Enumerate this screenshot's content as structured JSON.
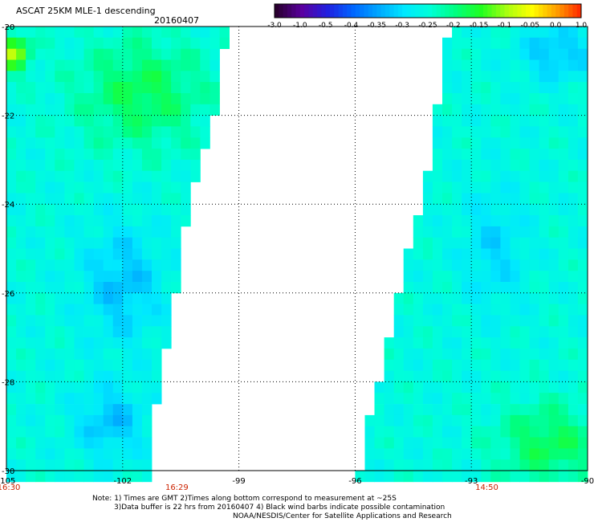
{
  "header": {
    "title": "ASCAT 25KM MLE-1 descending",
    "date": "20160407"
  },
  "colorbar": {
    "labels": [
      "-3.0",
      "-1.0",
      "-0.5",
      "-0.4",
      "-0.35",
      "-0.3",
      "-0.25",
      "-0.2",
      "-0.15",
      "-0.1",
      "-0.05",
      "0.0",
      "1.0"
    ],
    "colors": [
      "#2a0030",
      "#5a00a0",
      "#2020e0",
      "#0066ff",
      "#00a8ff",
      "#00e8ff",
      "#00ffd8",
      "#00ff80",
      "#20ff20",
      "#a8ff10",
      "#ffff00",
      "#ff9900",
      "#ff1a00"
    ]
  },
  "chart_data": {
    "type": "heatmap",
    "title": "ASCAT 25KM MLE-1 descending",
    "xlim": [
      -105,
      -90
    ],
    "ylim": [
      -30,
      -20
    ],
    "x_ticks": [
      "-105",
      "-102",
      "-99",
      "-96",
      "-93",
      "-90"
    ],
    "y_ticks": [
      "-20",
      "-22",
      "-24",
      "-26",
      "-28",
      "-30"
    ],
    "grid": true,
    "time_labels": [
      {
        "x": -105,
        "text": "16:30"
      },
      {
        "x": -100.6,
        "text": "16:29"
      },
      {
        "x": -92.6,
        "text": "14:50"
      }
    ],
    "swaths": [
      {
        "name": "west",
        "lon_west": -105,
        "lon_east_at_lat": [
          [
            -20,
            -99.3
          ],
          [
            -22,
            -99.6
          ],
          [
            -24,
            -100.3
          ],
          [
            -26,
            -100.6
          ],
          [
            -28,
            -101.0
          ],
          [
            -29,
            -101.2
          ],
          [
            -30,
            -101.2
          ]
        ]
      },
      {
        "name": "east",
        "lon_west_at_lat": [
          [
            -20,
            -93.6
          ],
          [
            -22,
            -93.9
          ],
          [
            -24,
            -94.3
          ],
          [
            -26,
            -94.9
          ],
          [
            -28,
            -95.4
          ],
          [
            -29,
            -95.7
          ],
          [
            -30,
            -95.9
          ]
        ],
        "lon_east": -90
      }
    ],
    "value_notes": "Values range mostly between -0.35 and -0.15; greener (-0.2 to -0.15) in NW and SE, bluer (-0.35) in central western swath, yellow (-0.05) near -104.8,-20.6"
  },
  "footer": {
    "note1": "Note: 1) Times are GMT 2)Times along bottom correspond to measurement at ~25S",
    "note2": "3)Data buffer is 22 hrs from 20160407 4) Black wind barbs indicate possible contamination",
    "note3": "NOAA/NESDIS/Center for Satellite Applications and Research"
  }
}
